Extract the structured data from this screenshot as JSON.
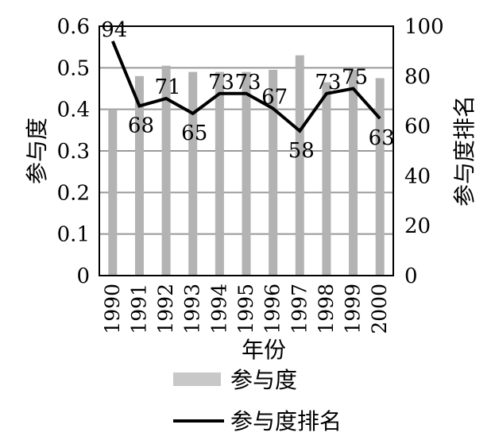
{
  "chart_data": {
    "type": "bar",
    "categories": [
      "1990",
      "1991",
      "1992",
      "1993",
      "1994",
      "1995",
      "1996",
      "1997",
      "1998",
      "1999",
      "2000"
    ],
    "series": [
      {
        "name": "参与度",
        "type": "bar",
        "axis": "left",
        "values": [
          0.4,
          0.48,
          0.505,
          0.49,
          0.49,
          0.49,
          0.495,
          0.53,
          0.465,
          0.495,
          0.475
        ]
      },
      {
        "name": "参与度排名",
        "type": "line",
        "axis": "right",
        "values": [
          94,
          68,
          71,
          65,
          73,
          73,
          67,
          58,
          73,
          75,
          63
        ],
        "data_labels": [
          "94",
          "68",
          "71",
          "65",
          "73",
          "73",
          "67",
          "58",
          "73",
          "75",
          "63"
        ]
      }
    ],
    "xlabel": "年份",
    "ylabel": "参与度",
    "y2label": "参与度排名",
    "ylim": [
      0,
      0.6
    ],
    "y2lim": [
      0,
      100
    ],
    "yticks": [
      "0",
      "0.1",
      "0.2",
      "0.3",
      "0.4",
      "0.5",
      "0.6"
    ],
    "y2ticks": [
      "0",
      "20",
      "40",
      "60",
      "80",
      "100"
    ],
    "grid": true,
    "legend": "bottom",
    "colors": {
      "bar": "#b3b3b3",
      "line": "#000000",
      "grid": "#999999"
    }
  }
}
